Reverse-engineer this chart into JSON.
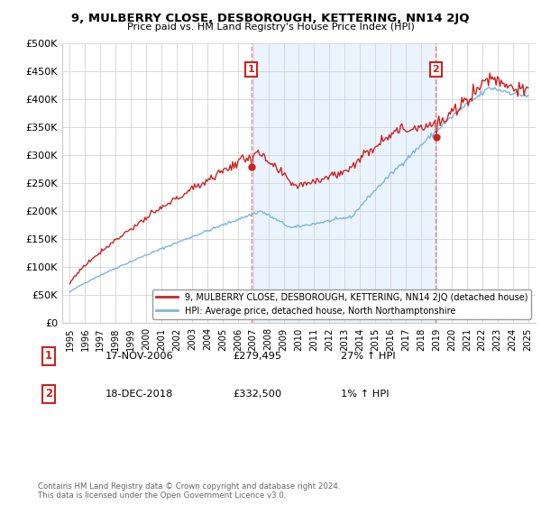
{
  "title": "9, MULBERRY CLOSE, DESBOROUGH, KETTERING, NN14 2JQ",
  "subtitle": "Price paid vs. HM Land Registry's House Price Index (HPI)",
  "hpi_label": "HPI: Average price, detached house, North Northamptonshire",
  "price_label": "9, MULBERRY CLOSE, DESBOROUGH, KETTERING, NN14 2JQ (detached house)",
  "sale1_date": "17-NOV-2006",
  "sale1_price": 279495,
  "sale1_hpi": "27% ↑ HPI",
  "sale2_date": "18-DEC-2018",
  "sale2_price": 332500,
  "sale2_hpi": "1% ↑ HPI",
  "sale1_x": 2006.88,
  "sale2_x": 2018.96,
  "ylim_min": 0,
  "ylim_max": 500000,
  "xlim_min": 1994.5,
  "xlim_max": 2025.5,
  "ylabel_ticks": [
    0,
    50000,
    100000,
    150000,
    200000,
    250000,
    300000,
    350000,
    400000,
    450000,
    500000
  ],
  "ylabel_labels": [
    "£0",
    "£50K",
    "£100K",
    "£150K",
    "£200K",
    "£250K",
    "£300K",
    "£350K",
    "£400K",
    "£450K",
    "£500K"
  ],
  "xtick_years": [
    1995,
    1996,
    1997,
    1998,
    1999,
    2000,
    2001,
    2002,
    2003,
    2004,
    2005,
    2006,
    2007,
    2008,
    2009,
    2010,
    2011,
    2012,
    2013,
    2014,
    2015,
    2016,
    2017,
    2018,
    2019,
    2020,
    2021,
    2022,
    2023,
    2024,
    2025
  ],
  "hpi_color": "#7ab8d9",
  "price_color": "#cc2222",
  "shade_color": "#ddeeff",
  "dashed_color": "#e88080",
  "background_color": "#ffffff",
  "grid_color": "#cccccc",
  "footnote": "Contains HM Land Registry data © Crown copyright and database right 2024.\nThis data is licensed under the Open Government Licence v3.0.",
  "legend_box_color": "#cc2222",
  "box_number_color": "#cc2222"
}
